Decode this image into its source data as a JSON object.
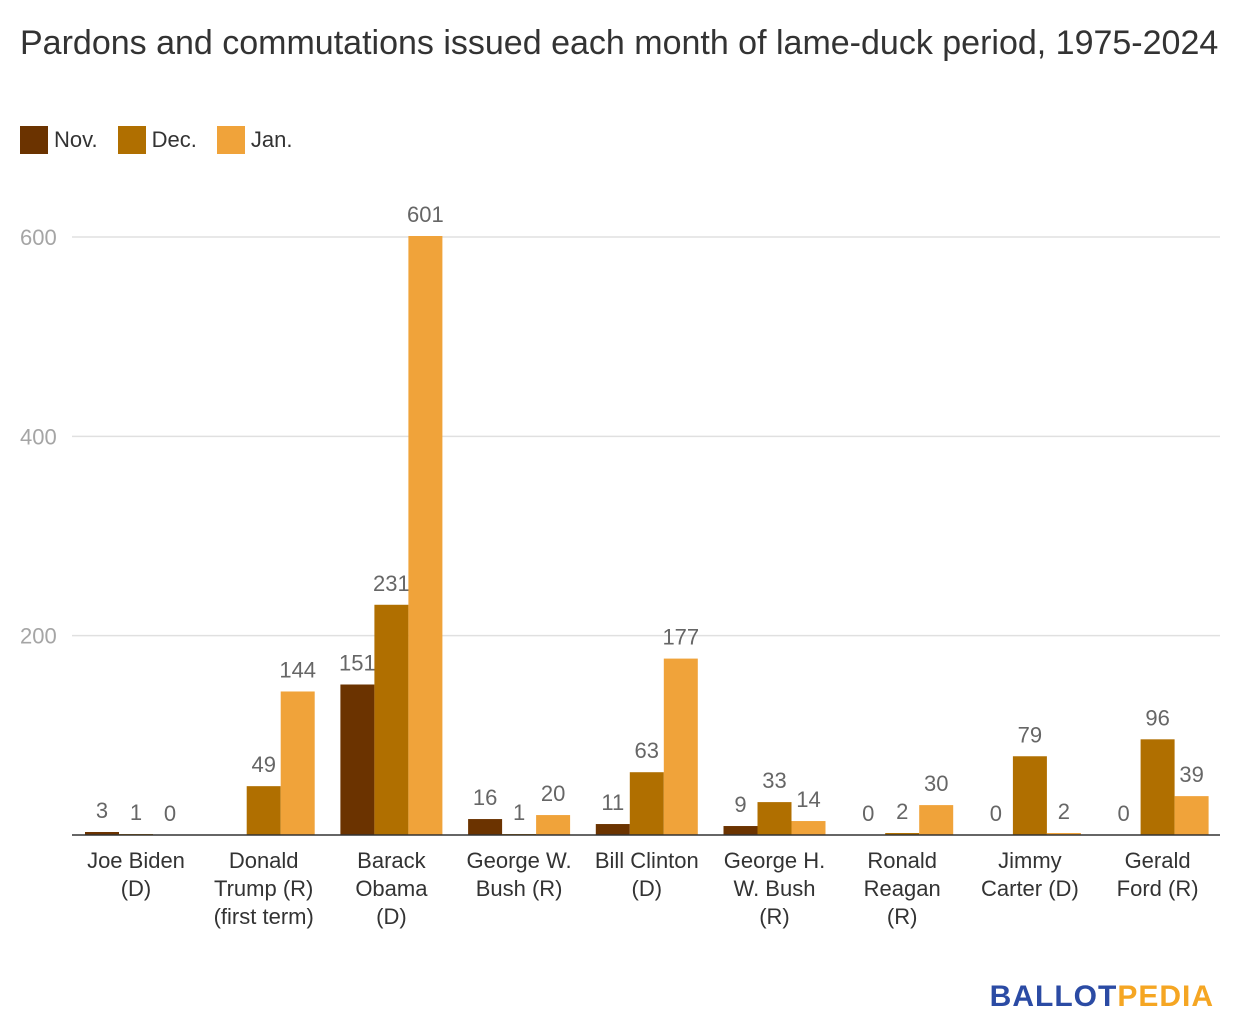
{
  "chart_data": {
    "type": "bar",
    "title": "Pardons and commutations issued each month of lame-duck period, 1975-2024",
    "xlabel": "",
    "ylabel": "",
    "ylim": [
      0,
      640
    ],
    "yticks": [
      200,
      400,
      600
    ],
    "grid": true,
    "legend_position": "top-left",
    "categories": [
      [
        "Joe Biden",
        "(D)"
      ],
      [
        "Donald",
        "Trump (R)",
        "(first term)"
      ],
      [
        "Barack",
        "Obama",
        "(D)"
      ],
      [
        "George W.",
        "Bush (R)"
      ],
      [
        "Bill Clinton",
        "(D)"
      ],
      [
        "George H.",
        "W. Bush",
        "(R)"
      ],
      [
        "Ronald",
        "Reagan",
        "(R)"
      ],
      [
        "Jimmy",
        "Carter (D)"
      ],
      [
        "Gerald",
        "Ford (R)"
      ]
    ],
    "series": [
      {
        "name": "Nov.",
        "color": "#6b3300",
        "values": [
          3,
          null,
          151,
          16,
          11,
          9,
          0,
          0,
          0
        ]
      },
      {
        "name": "Dec.",
        "color": "#b06f00",
        "values": [
          1,
          49,
          231,
          1,
          63,
          33,
          2,
          79,
          96
        ]
      },
      {
        "name": "Jan.",
        "color": "#f0a33a",
        "values": [
          0,
          144,
          601,
          20,
          177,
          14,
          30,
          2,
          39
        ]
      }
    ]
  },
  "brand": {
    "part1": "BALLOT",
    "part2": "PEDIA"
  }
}
